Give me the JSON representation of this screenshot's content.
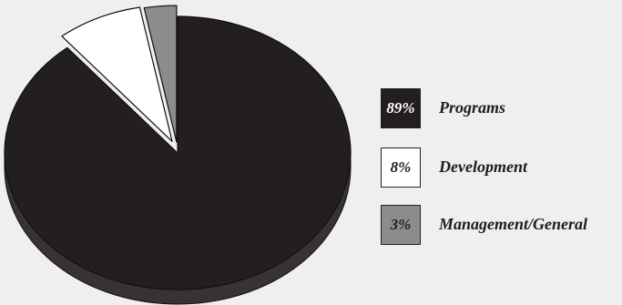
{
  "chart_data": {
    "type": "pie",
    "style": "3d-exploded",
    "slices": [
      {
        "label": "Programs",
        "value": 89,
        "value_label": "89%",
        "color": "#231f20",
        "text_color": "#ffffff"
      },
      {
        "label": "Development",
        "value": 8,
        "value_label": "8%",
        "color": "#ffffff",
        "text_color": "#1d1d1d"
      },
      {
        "label": "Management/General",
        "value": 3,
        "value_label": "3%",
        "color": "#8c8c8c",
        "text_color": "#1d1d1d"
      }
    ],
    "legend_position": "right"
  }
}
